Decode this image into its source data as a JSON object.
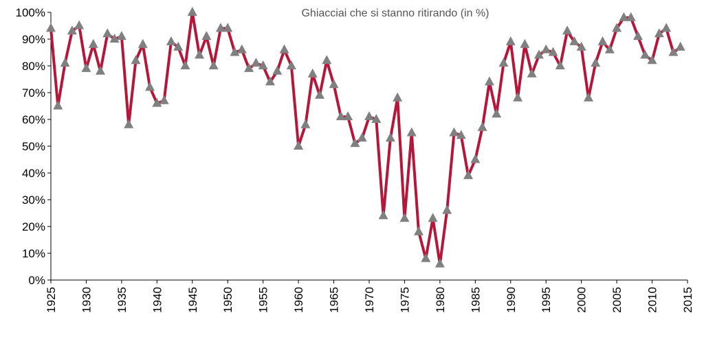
{
  "chart_data": {
    "type": "line",
    "title": "Ghiacciai che si stanno ritirando (in %)",
    "x": [
      1925,
      1926,
      1927,
      1928,
      1929,
      1930,
      1931,
      1932,
      1933,
      1934,
      1935,
      1936,
      1937,
      1938,
      1939,
      1940,
      1941,
      1942,
      1943,
      1944,
      1945,
      1946,
      1947,
      1948,
      1949,
      1950,
      1951,
      1952,
      1953,
      1954,
      1955,
      1956,
      1957,
      1958,
      1959,
      1960,
      1961,
      1962,
      1963,
      1964,
      1965,
      1966,
      1967,
      1968,
      1969,
      1970,
      1971,
      1972,
      1973,
      1974,
      1975,
      1976,
      1977,
      1978,
      1979,
      1980,
      1981,
      1982,
      1983,
      1984,
      1985,
      1986,
      1987,
      1988,
      1989,
      1990,
      1991,
      1992,
      1993,
      1994,
      1995,
      1996,
      1997,
      1998,
      1999,
      2000,
      2001,
      2002,
      2003,
      2004,
      2005,
      2006,
      2007,
      2008,
      2009,
      2010,
      2011,
      2012,
      2013,
      2014
    ],
    "series": [
      {
        "color": "#b5173a",
        "marker_color": "#808080",
        "values": [
          94,
          65,
          81,
          93,
          95,
          79,
          88,
          78,
          92,
          90,
          91,
          58,
          82,
          88,
          72,
          66,
          67,
          89,
          87,
          80,
          100,
          84,
          91,
          80,
          94,
          94,
          85,
          86,
          79,
          81,
          80,
          74,
          78,
          86,
          80,
          50,
          58,
          77,
          69,
          82,
          73,
          61,
          61,
          51,
          53,
          61,
          60,
          24,
          53,
          68,
          23,
          55,
          18,
          8,
          23,
          6,
          26,
          55,
          54,
          39,
          45,
          57,
          74,
          62,
          81,
          89,
          68,
          88,
          77,
          84,
          86,
          85,
          80,
          93,
          89,
          87,
          68,
          81,
          89,
          86,
          94,
          98,
          98,
          91,
          84,
          82,
          92,
          94,
          85,
          87
        ]
      }
    ],
    "xlim": [
      1925,
      2015
    ],
    "xticks": [
      1925,
      1930,
      1935,
      1940,
      1945,
      1950,
      1955,
      1960,
      1965,
      1970,
      1975,
      1980,
      1985,
      1990,
      1995,
      2000,
      2005,
      2010,
      2015
    ],
    "ylim": [
      0,
      100
    ],
    "yticks": [
      {
        "value": 0,
        "label": "0%"
      },
      {
        "value": 10,
        "label": "10%"
      },
      {
        "value": 20,
        "label": "20%"
      },
      {
        "value": 30,
        "label": "30%"
      },
      {
        "value": 40,
        "label": "40%"
      },
      {
        "value": 50,
        "label": "50%"
      },
      {
        "value": 60,
        "label": "60%"
      },
      {
        "value": 70,
        "label": "70%"
      },
      {
        "value": 80,
        "label": "80%"
      },
      {
        "value": 90,
        "label": "90%"
      },
      {
        "value": 100,
        "label": "100%"
      }
    ],
    "grid": false
  }
}
